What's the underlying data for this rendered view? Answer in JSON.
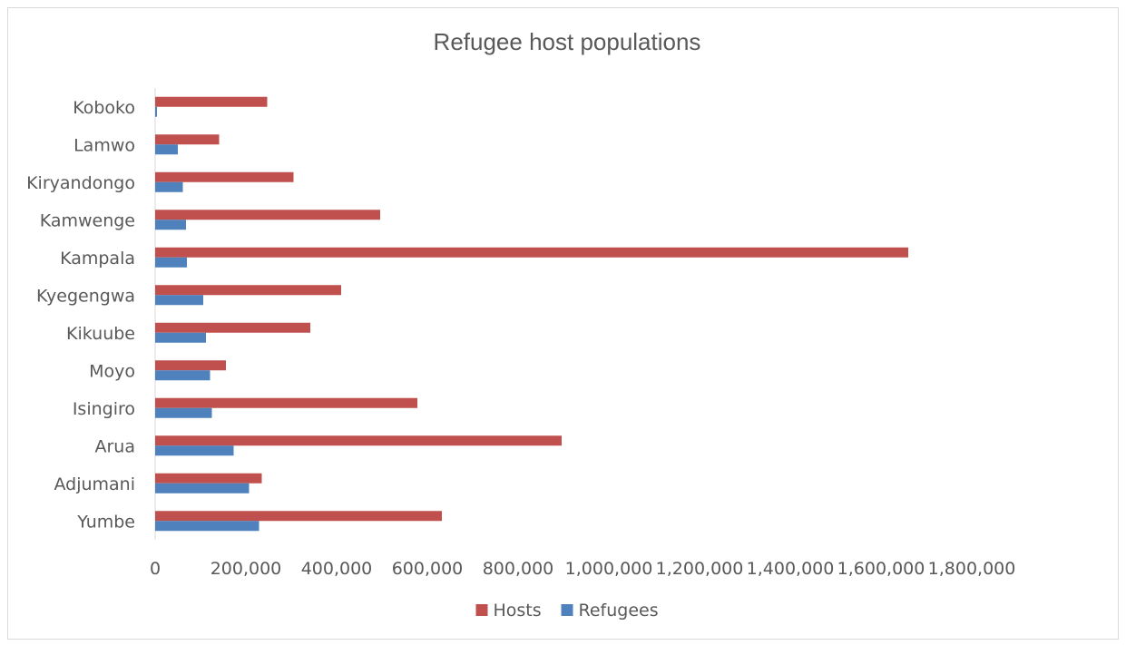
{
  "chart_data": {
    "type": "bar",
    "orientation": "horizontal",
    "title": "Refugee host populations",
    "xlabel": "",
    "ylabel": "",
    "categories": [
      "Koboko",
      "Lamwo",
      "Kiryandongo",
      "Kamwenge",
      "Kampala",
      "Kyegengwa",
      "Kikuube",
      "Moyo",
      "Isingiro",
      "Arua",
      "Adjumani",
      "Yumbe"
    ],
    "series": [
      {
        "name": "Hosts",
        "color": "#c0504d",
        "values": [
          247000,
          141000,
          305000,
          496000,
          1660000,
          410000,
          342000,
          156000,
          578000,
          896000,
          235000,
          632000
        ]
      },
      {
        "name": "Refugees",
        "color": "#4f81bd",
        "values": [
          4000,
          50000,
          61000,
          68000,
          70000,
          106000,
          112000,
          121000,
          125000,
          173000,
          207000,
          229000
        ]
      }
    ],
    "xlim": [
      0,
      1800000
    ],
    "xticks": [
      0,
      200000,
      400000,
      600000,
      800000,
      1000000,
      1200000,
      1400000,
      1600000,
      1800000
    ],
    "xtick_labels": [
      "0",
      "200,000",
      "400,000",
      "600,000",
      "800,000",
      "1,000,000",
      "1,200,000",
      "1,400,000",
      "1,600,000",
      "1,800,000"
    ],
    "grid": false,
    "legend_position": "bottom"
  }
}
